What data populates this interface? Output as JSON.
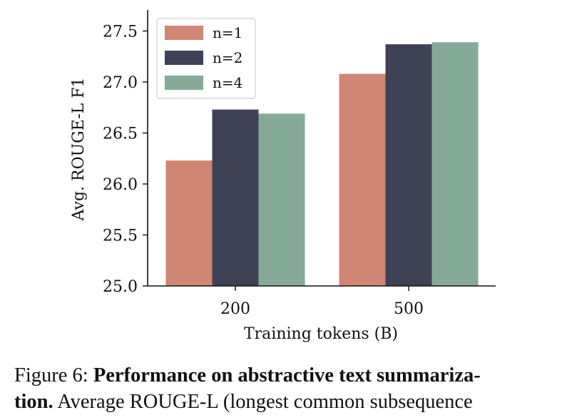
{
  "chart_data": {
    "type": "bar",
    "title": "",
    "xlabel": "Training tokens (B)",
    "ylabel": "Avg. ROUGE-L F1",
    "categories": [
      "200",
      "500"
    ],
    "series": [
      {
        "name": "n=1",
        "values": [
          26.23,
          27.08
        ],
        "color": "#d08672"
      },
      {
        "name": "n=2",
        "values": [
          26.73,
          27.37
        ],
        "color": "#3f4257"
      },
      {
        "name": "n=4",
        "values": [
          26.69,
          27.39
        ],
        "color": "#85ab98"
      }
    ],
    "ylim": [
      25.0,
      27.7
    ],
    "yticks": [
      "25.0",
      "25.5",
      "26.0",
      "26.5",
      "27.0",
      "27.5"
    ],
    "grid": false,
    "legend_position": "top-left"
  },
  "caption": {
    "prefix": "Figure 6: ",
    "bold_line1": "Performance on abstractive text summariza-",
    "bold_line2": "tion.",
    "rest_line2": " Average ROUGE-L (longest common subsequence"
  }
}
